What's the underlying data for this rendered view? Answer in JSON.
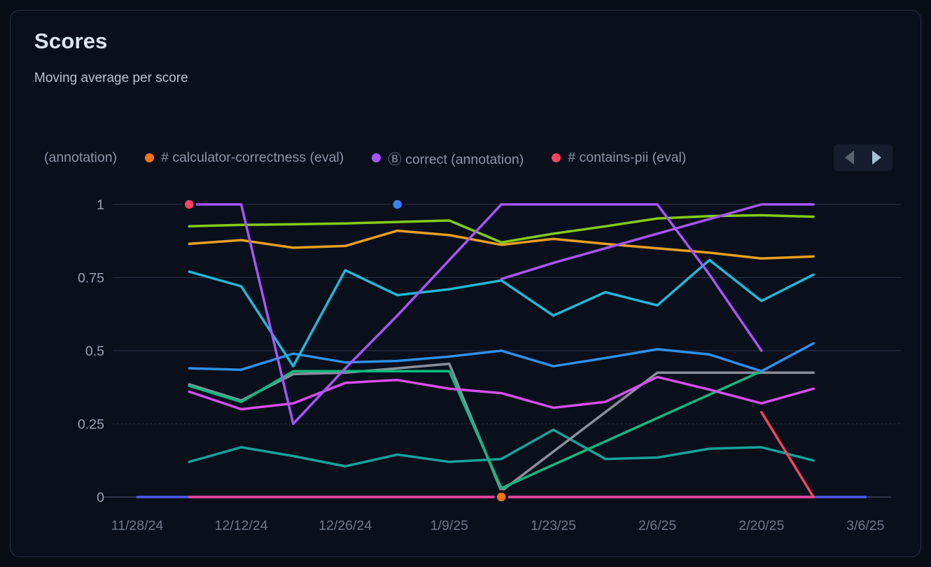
{
  "header": {
    "title": "Scores",
    "subtitle": "Moving average per score"
  },
  "legend": {
    "items": [
      {
        "label": "(annotation)",
        "color": null,
        "truncated": true
      },
      {
        "label": "# calculator-correctness (eval)",
        "color": "#f97316"
      },
      {
        "label": "Ⓑ correct (annotation)",
        "color": "#a855f7"
      },
      {
        "label": "# contains-pii (eval)",
        "color": "#f4445e"
      }
    ],
    "nav": {
      "prev_icon": "chevron-left-icon",
      "next_icon": "chevron-right-icon"
    }
  },
  "chart_data": {
    "type": "line",
    "title": "Scores",
    "subtitle": "Moving average per score",
    "grid": "horizontal-only",
    "ylim": [
      0,
      1
    ],
    "y_axis": {
      "ticks": [
        {
          "label": "0",
          "value": 0
        },
        {
          "label": "0.25",
          "value": 0.25
        },
        {
          "label": "0.5",
          "value": 0.5
        },
        {
          "label": "0.75",
          "value": 0.75
        },
        {
          "label": "1",
          "value": 1
        }
      ]
    },
    "x_axis": {
      "ticks": [
        {
          "label": "11/28/24",
          "day": 0
        },
        {
          "label": "12/12/24",
          "day": 14
        },
        {
          "label": "12/26/24",
          "day": 28
        },
        {
          "label": "1/9/25",
          "day": 42
        },
        {
          "label": "1/23/25",
          "day": 56
        },
        {
          "label": "2/6/25",
          "day": 70
        },
        {
          "label": "2/20/25",
          "day": 84
        },
        {
          "label": "3/6/25",
          "day": 98
        }
      ],
      "range_days": [
        0,
        98
      ]
    },
    "categories": [
      "12/5/24",
      "12/12/24",
      "12/19/24",
      "12/26/24",
      "1/2/25",
      "1/9/25",
      "1/16/25",
      "1/23/25",
      "1/30/25",
      "2/6/25",
      "2/13/25",
      "2/20/25",
      "2/27/25"
    ],
    "x_days": [
      7,
      14,
      21,
      28,
      35,
      42,
      49,
      56,
      63,
      70,
      77,
      84,
      91
    ],
    "series": [
      {
        "id": "indigo-baseline",
        "color": "#4c5bf0",
        "x_days": [
          0,
          98
        ],
        "values": [
          0,
          0
        ]
      },
      {
        "id": "pink-baseline",
        "color": "#ec4899",
        "values": [
          0,
          0,
          0,
          0,
          0,
          0,
          0,
          0,
          0,
          0,
          0,
          0,
          0
        ]
      },
      {
        "id": "teal",
        "color": "#16a398",
        "values": [
          0.12,
          0.17,
          0.14,
          0.105,
          0.145,
          0.12,
          0.13,
          0.23,
          0.13,
          0.135,
          0.165,
          0.17,
          0.125
        ]
      },
      {
        "id": "gray",
        "color": "#8a909b",
        "values": [
          0.385,
          0.33,
          0.42,
          0.425,
          0.44,
          0.455,
          0.02,
          0.155,
          0.29,
          0.425,
          0.425,
          0.425,
          0.425
        ]
      },
      {
        "id": "emerald",
        "color": "#10b981",
        "values": [
          0.38,
          0.325,
          0.43,
          0.43,
          0.43,
          0.43,
          0.03,
          0.11,
          0.19,
          0.27,
          0.35,
          0.43,
          null
        ]
      },
      {
        "id": "magenta",
        "color": "#d84ef0",
        "values": [
          0.36,
          0.3,
          0.32,
          0.39,
          0.4,
          0.37,
          0.355,
          0.305,
          0.325,
          0.41,
          0.367,
          0.32,
          0.37
        ]
      },
      {
        "id": "blue",
        "color": "#3090ec",
        "values": [
          0.44,
          0.435,
          0.49,
          0.46,
          0.465,
          0.48,
          0.5,
          0.447,
          0.475,
          0.505,
          0.487,
          0.43,
          0.525
        ]
      },
      {
        "id": "cyan",
        "color": "#22b8d8",
        "values": [
          0.77,
          0.72,
          0.447,
          0.775,
          0.69,
          0.71,
          0.74,
          0.62,
          0.7,
          0.655,
          0.81,
          0.67,
          0.76
        ]
      },
      {
        "id": "amber",
        "color": "#e8a020",
        "values": [
          0.865,
          0.878,
          0.852,
          0.858,
          0.91,
          0.895,
          0.862,
          0.882,
          0.865,
          0.85,
          0.835,
          0.815,
          0.822
        ]
      },
      {
        "id": "lime",
        "color": "#84cc16",
        "values": [
          0.925,
          0.93,
          0.932,
          0.935,
          0.94,
          0.945,
          0.87,
          0.9,
          0.925,
          0.952,
          0.96,
          0.963,
          0.958
        ]
      },
      {
        "id": "violet-1",
        "color": "#a855f7",
        "values": [
          1,
          1,
          0.25,
          0.44,
          0.62,
          0.81,
          1,
          1,
          1,
          1,
          0.76,
          0.5,
          null
        ]
      },
      {
        "id": "violet-2",
        "color": "#a855f7",
        "values": [
          null,
          null,
          null,
          null,
          null,
          null,
          0.745,
          0.8,
          0.85,
          0.9,
          0.95,
          1,
          1
        ]
      },
      {
        "id": "red",
        "color": "#f4445e",
        "values": [
          1,
          null,
          null,
          null,
          null,
          null,
          null,
          null,
          null,
          null,
          null,
          0.29,
          0
        ]
      }
    ],
    "markers": [
      {
        "id": "red-dot",
        "day": 7,
        "value": 1,
        "color": "#f4445e"
      },
      {
        "id": "blue-dot",
        "day": 35,
        "value": 1,
        "color": "#3b82f6"
      },
      {
        "id": "orange-dot",
        "day": 49,
        "value": 0,
        "color": "#f97316"
      }
    ]
  }
}
